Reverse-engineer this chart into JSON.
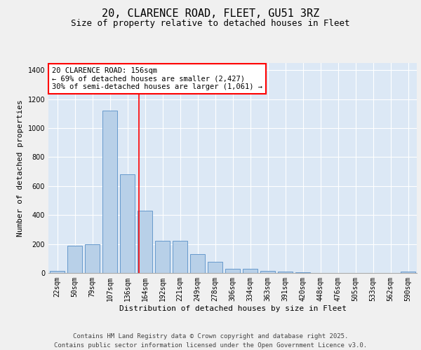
{
  "title_line1": "20, CLARENCE ROAD, FLEET, GU51 3RZ",
  "title_line2": "Size of property relative to detached houses in Fleet",
  "xlabel": "Distribution of detached houses by size in Fleet",
  "ylabel": "Number of detached properties",
  "categories": [
    "22sqm",
    "50sqm",
    "79sqm",
    "107sqm",
    "136sqm",
    "164sqm",
    "192sqm",
    "221sqm",
    "249sqm",
    "278sqm",
    "306sqm",
    "334sqm",
    "363sqm",
    "391sqm",
    "420sqm",
    "448sqm",
    "476sqm",
    "505sqm",
    "533sqm",
    "562sqm",
    "590sqm"
  ],
  "values": [
    15,
    190,
    200,
    1120,
    680,
    430,
    220,
    220,
    130,
    75,
    30,
    28,
    15,
    12,
    5,
    0,
    0,
    0,
    0,
    0,
    10
  ],
  "bar_color": "#b8d0e8",
  "bar_edge_color": "#6699cc",
  "plot_bg_color": "#dce8f5",
  "grid_color": "#ffffff",
  "fig_bg_color": "#f0f0f0",
  "vline_x_index": 4.65,
  "vline_color": "red",
  "annotation_text": "20 CLARENCE ROAD: 156sqm\n← 69% of detached houses are smaller (2,427)\n30% of semi-detached houses are larger (1,061) →",
  "annotation_box_facecolor": "white",
  "annotation_box_edgecolor": "red",
  "ylim": [
    0,
    1450
  ],
  "yticks": [
    0,
    200,
    400,
    600,
    800,
    1000,
    1200,
    1400
  ],
  "footer_line1": "Contains HM Land Registry data © Crown copyright and database right 2025.",
  "footer_line2": "Contains public sector information licensed under the Open Government Licence v3.0.",
  "title_fontsize": 11,
  "subtitle_fontsize": 9,
  "axis_label_fontsize": 8,
  "tick_fontsize": 7,
  "annotation_fontsize": 7.5,
  "footer_fontsize": 6.5
}
